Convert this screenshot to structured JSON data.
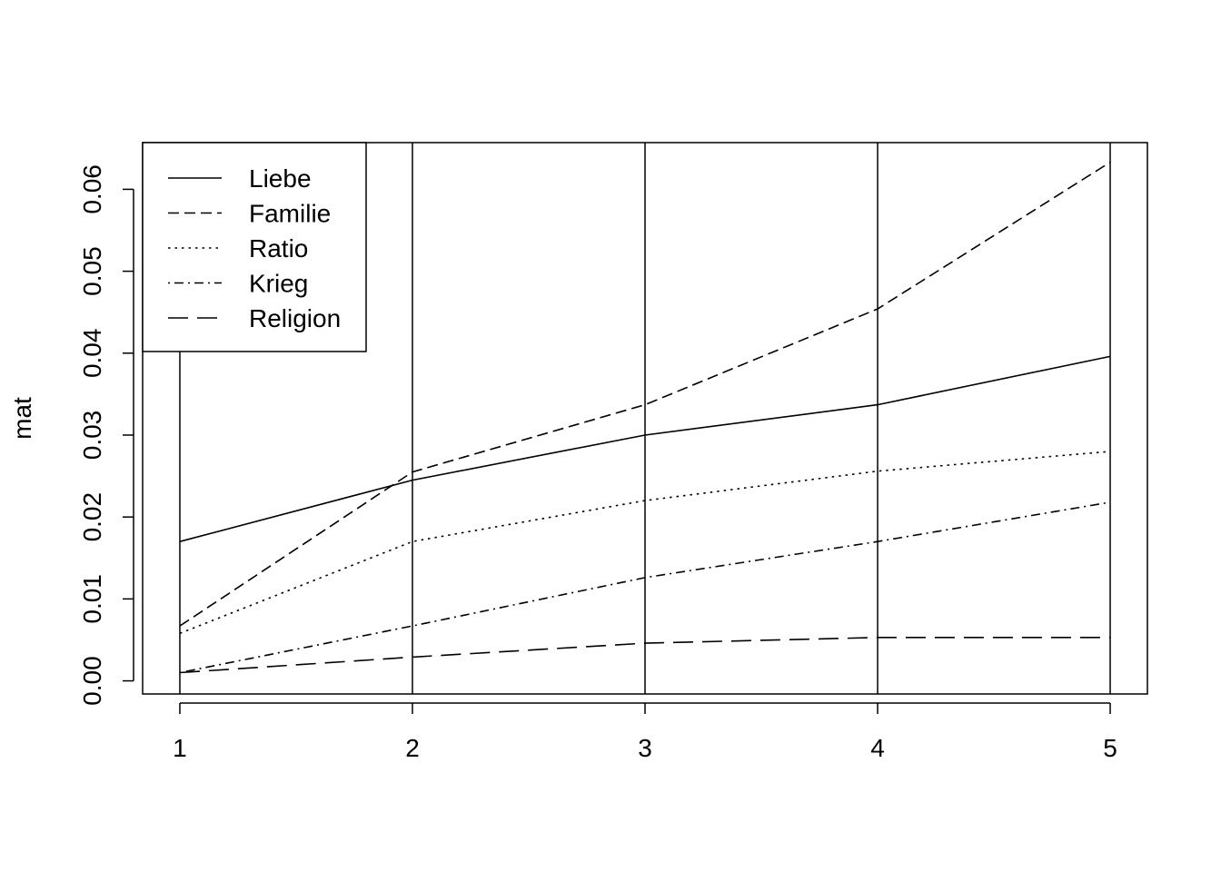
{
  "chart_data": {
    "type": "line",
    "title": "",
    "xlabel": "",
    "ylabel": "mat",
    "x": [
      1,
      2,
      3,
      4,
      5
    ],
    "x_ticks": [
      "1",
      "2",
      "3",
      "4",
      "5"
    ],
    "y_ticks": [
      "0.00",
      "0.01",
      "0.02",
      "0.03",
      "0.04",
      "0.05",
      "0.06"
    ],
    "xlim": [
      0.84,
      5.16
    ],
    "ylim": [
      -0.0016,
      0.0657
    ],
    "grid": "vertical lines at each x",
    "legend_position": "top-left",
    "series": [
      {
        "name": "Liebe",
        "dash": "solid",
        "values": [
          0.017,
          0.0245,
          0.03,
          0.0337,
          0.0396
        ]
      },
      {
        "name": "Familie",
        "dash": "dashed",
        "values": [
          0.0067,
          0.0255,
          0.0337,
          0.0454,
          0.0633
        ]
      },
      {
        "name": "Ratio",
        "dash": "dotted",
        "values": [
          0.0058,
          0.017,
          0.022,
          0.0256,
          0.028
        ]
      },
      {
        "name": "Krieg",
        "dash": "dotdash",
        "values": [
          0.001,
          0.0067,
          0.0126,
          0.017,
          0.0218
        ]
      },
      {
        "name": "Religion",
        "dash": "longdash",
        "values": [
          0.001,
          0.0029,
          0.0046,
          0.0053,
          0.0053
        ]
      }
    ]
  }
}
